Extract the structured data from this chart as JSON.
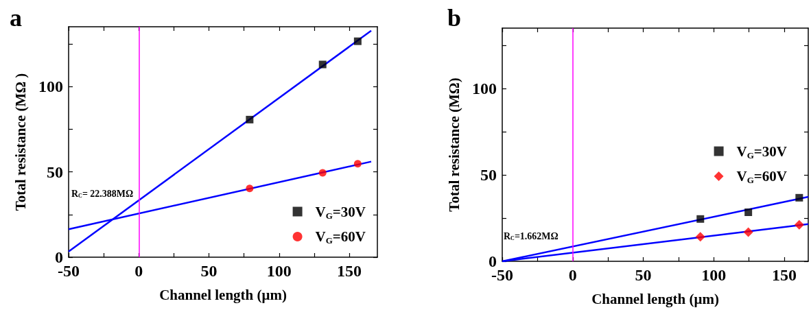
{
  "chart_data": [
    {
      "type": "scatter",
      "xlabel": "Channel length (μm)",
      "ylabel": "Total resistance (MΩ )",
      "xlim": [
        -50,
        170
      ],
      "ylim": [
        0,
        135
      ],
      "xticks": [
        -50,
        {
          "value": -25,
          "label": null
        },
        0,
        {
          "value": 25,
          "label": null
        },
        50,
        {
          "value": 75,
          "label": null
        },
        100,
        {
          "value": 125,
          "label": null
        },
        150
      ],
      "yticks": [
        0,
        {
          "value": 25,
          "label": null
        },
        50,
        {
          "value": 75,
          "label": null
        },
        100,
        {
          "value": 125,
          "label": null
        }
      ],
      "legend": "bottom right",
      "grid": false,
      "annotations": [
        "a",
        "R$_{C}$= 22.388MΩ"
      ],
      "ref_lines": [
        {
          "axis": "x",
          "value": 0,
          "color": "#ff00ff",
          "line_style": "solid"
        }
      ],
      "series": [
        {
          "name": "V$_{G}$=30V",
          "type": "scatter",
          "marker": "square",
          "color": "#000000",
          "x": [
            79,
            131,
            156
          ],
          "values": [
            80.6,
            112.9,
            126.5
          ]
        },
        {
          "name": "V$_{G}$=60V",
          "type": "scatter",
          "marker": "circle",
          "color": "#ff0000",
          "x": [
            79,
            131,
            156
          ],
          "values": [
            40.3,
            49.4,
            54.7
          ]
        },
        {
          "type": "line",
          "marker": "none",
          "color": "#0000ff",
          "x": [
            -50,
            165.6
          ],
          "values": [
            3.3,
            132.7
          ]
        },
        {
          "type": "line",
          "marker": "none",
          "color": "#0000ff",
          "x": [
            -50,
            165.6
          ],
          "values": [
            16.4,
            56.0
          ]
        }
      ]
    },
    {
      "type": "scatter",
      "xlabel": "Channel length (μm)",
      "ylabel": "Total resistance (MΩ)",
      "xlim": [
        -50,
        167
      ],
      "ylim": [
        0,
        135
      ],
      "xticks": [
        -50,
        {
          "value": -25,
          "label": null
        },
        0,
        {
          "value": 25,
          "label": null
        },
        50,
        {
          "value": 75,
          "label": null
        },
        100,
        {
          "value": 125,
          "label": null
        },
        150
      ],
      "yticks": [
        0,
        {
          "value": 25,
          "label": null
        },
        50,
        {
          "value": 75,
          "label": null
        },
        100,
        {
          "value": 125,
          "label": null
        }
      ],
      "legend": "right",
      "grid": false,
      "annotations": [
        "b",
        "R$_{C}$=1.662MΩ"
      ],
      "ref_lines": [
        {
          "axis": "x",
          "value": 0,
          "color": "#ff00ff",
          "line_style": "solid"
        }
      ],
      "series": [
        {
          "name": "V$_{G}$=30V",
          "type": "scatter",
          "marker": "square",
          "color": "#000000",
          "x": [
            90.5,
            124.5,
            160.6
          ],
          "values": [
            24.5,
            28.4,
            36.8
          ]
        },
        {
          "name": "V$_{G}$=60V",
          "type": "scatter",
          "marker": "diamond",
          "color": "#ff0000",
          "x": [
            90.5,
            124.5,
            160.6
          ],
          "values": [
            14.2,
            16.9,
            21.1
          ]
        },
        {
          "type": "line",
          "marker": "none",
          "color": "#0000ff",
          "x": [
            -50,
            167
          ],
          "values": [
            0,
            37.3
          ]
        },
        {
          "type": "line",
          "marker": "none",
          "color": "#0000ff",
          "x": [
            -50,
            167
          ],
          "values": [
            0,
            21.5
          ]
        }
      ]
    }
  ]
}
